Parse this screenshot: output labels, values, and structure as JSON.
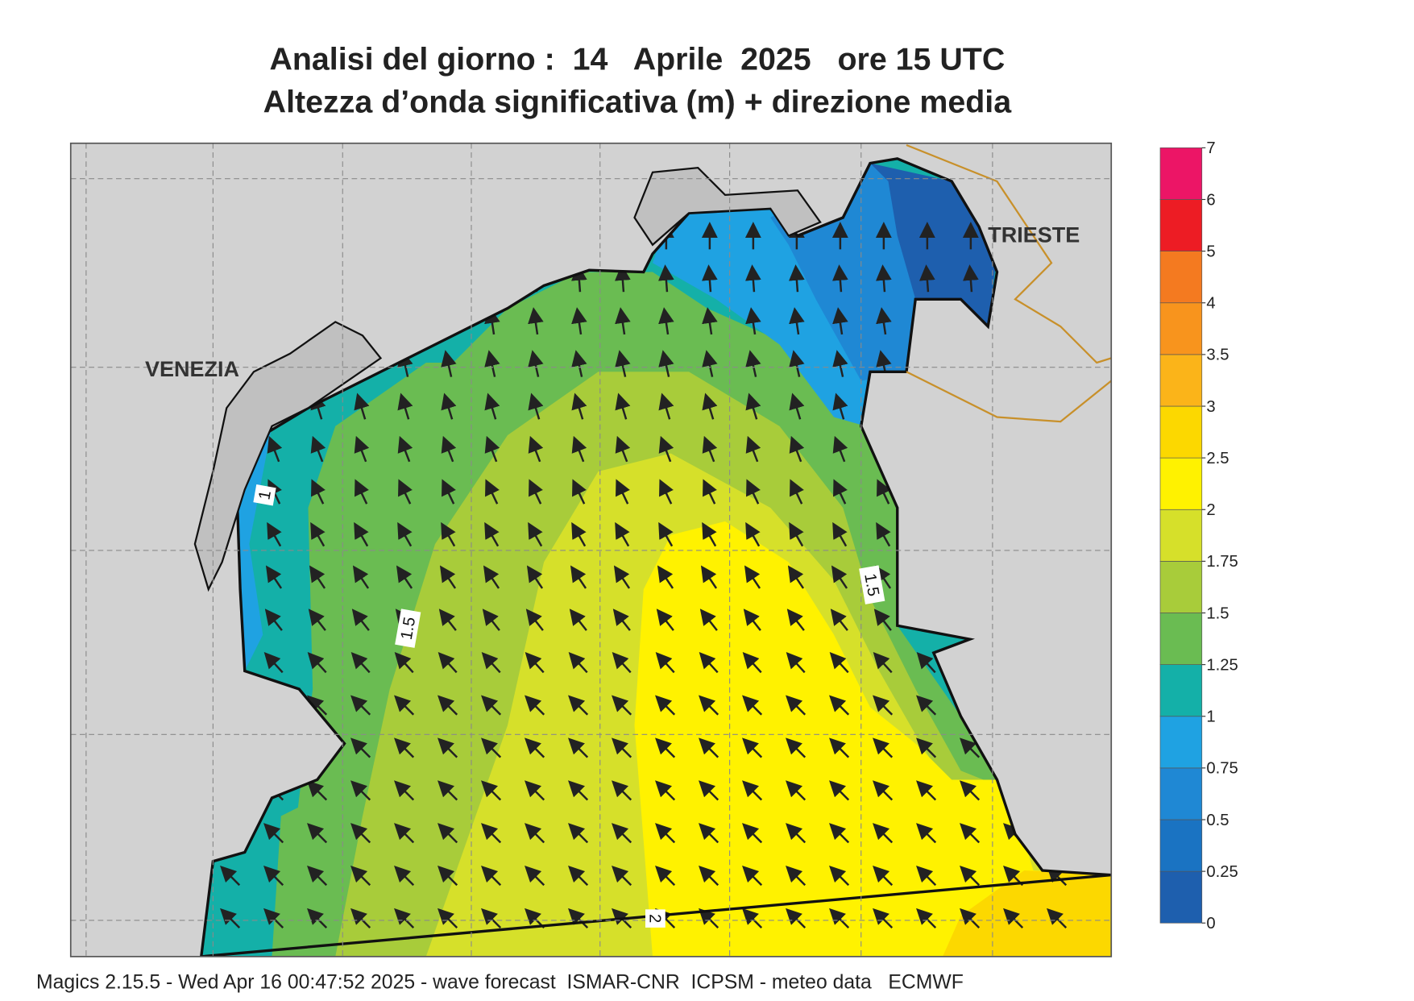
{
  "header": {
    "title": "Analisi del giorno :  14   Aprile  2025   ore 15 UTC",
    "subtitle": "Altezza d’onda significativa (m) + direzione media"
  },
  "map": {
    "places": [
      "VENEZIA",
      "TRIESTE"
    ],
    "contour_labels": [
      "1",
      "1.5",
      "1.5",
      "2"
    ]
  },
  "legend": {
    "ticks": [
      0,
      0.25,
      0.5,
      0.75,
      1,
      1.25,
      1.5,
      1.75,
      2,
      2.5,
      3,
      3.5,
      4,
      5,
      6,
      7
    ],
    "colors": [
      "#1e5fae",
      "#1a73c2",
      "#1f88d4",
      "#1fa2e2",
      "#14b0a8",
      "#6abc52",
      "#a8cc3a",
      "#d6e02a",
      "#fff200",
      "#fcd800",
      "#fbb419",
      "#f8941d",
      "#f47a20",
      "#ed1c24",
      "#ec1566"
    ]
  },
  "footer": "Magics 2.15.5 - Wed Apr 16 00:47:52 2025 - wave forecast  ISMAR-CNR  ICPSM - meteo data   ECMWF"
}
